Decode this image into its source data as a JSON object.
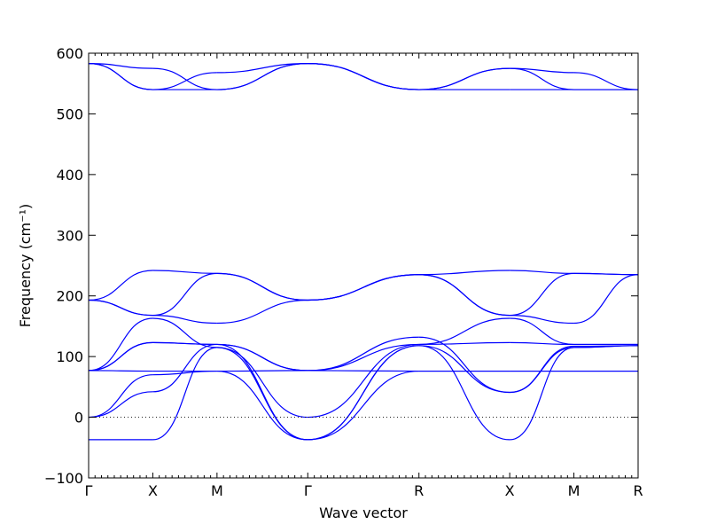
{
  "chart_data": {
    "type": "line",
    "title": "",
    "xlabel": "Wave vector",
    "ylabel": "Frequency (cm⁻¹)",
    "ylim": [
      -100,
      600
    ],
    "yticks": [
      -100,
      0,
      100,
      200,
      300,
      400,
      500,
      600
    ],
    "x_path_labels": [
      "Γ",
      "X",
      "M",
      "Γ",
      "R",
      "X",
      "M",
      "R"
    ],
    "x_path_positions": [
      0,
      0.5,
      1.0,
      1.707,
      2.573,
      3.28,
      3.78,
      4.28
    ],
    "grid": false,
    "line_color": "#0000ff",
    "zero_reference_line": true,
    "series": [
      {
        "segments": [
          {
            "x": [
              0,
              0.5
            ],
            "y": [
              583,
              575
            ]
          },
          {
            "x": [
              0.5,
              1.0
            ],
            "y": [
              575,
              540
            ]
          },
          {
            "x": [
              1.0,
              1.707
            ],
            "y": [
              540,
              583
            ]
          },
          {
            "x": [
              1.707,
              2.573
            ],
            "y": [
              583,
              540
            ]
          },
          {
            "x": [
              2.573,
              3.28
            ],
            "y": [
              540,
              575
            ]
          },
          {
            "x": [
              3.28,
              3.78
            ],
            "y": [
              575,
              540
            ]
          },
          {
            "x": [
              3.78,
              4.28
            ],
            "y": [
              540,
              540
            ]
          }
        ]
      },
      {
        "segments": [
          {
            "x": [
              0,
              0.5
            ],
            "y": [
              583,
              540
            ]
          },
          {
            "x": [
              0.5,
              1.0
            ],
            "y": [
              540,
              568
            ]
          },
          {
            "x": [
              1.0,
              1.707
            ],
            "y": [
              568,
              583
            ]
          },
          {
            "x": [
              1.707,
              2.573
            ],
            "y": [
              583,
              540
            ]
          },
          {
            "x": [
              2.573,
              3.28
            ],
            "y": [
              540,
              575
            ]
          },
          {
            "x": [
              3.28,
              3.78
            ],
            "y": [
              575,
              568
            ]
          },
          {
            "x": [
              3.78,
              4.28
            ],
            "y": [
              568,
              540
            ]
          }
        ]
      },
      {
        "segments": [
          {
            "x": [
              0,
              0.5
            ],
            "y": [
              583,
              540
            ]
          },
          {
            "x": [
              0.5,
              1.0
            ],
            "y": [
              540,
              540
            ]
          },
          {
            "x": [
              1.0,
              1.707
            ],
            "y": [
              540,
              583
            ]
          },
          {
            "x": [
              1.707,
              2.573
            ],
            "y": [
              583,
              540
            ]
          },
          {
            "x": [
              2.573,
              3.28
            ],
            "y": [
              540,
              540
            ]
          },
          {
            "x": [
              3.28,
              3.78
            ],
            "y": [
              540,
              540
            ]
          },
          {
            "x": [
              3.78,
              4.28
            ],
            "y": [
              540,
              540
            ]
          }
        ]
      },
      {
        "segments": [
          {
            "x": [
              0,
              0.5
            ],
            "y": [
              193,
              242
            ]
          },
          {
            "x": [
              0.5,
              1.0
            ],
            "y": [
              242,
              237
            ]
          },
          {
            "x": [
              1.0,
              1.707
            ],
            "y": [
              237,
              193
            ]
          },
          {
            "x": [
              1.707,
              2.573
            ],
            "y": [
              193,
              235
            ]
          },
          {
            "x": [
              2.573,
              3.28
            ],
            "y": [
              235,
              242
            ]
          },
          {
            "x": [
              3.28,
              3.78
            ],
            "y": [
              242,
              237
            ]
          },
          {
            "x": [
              3.78,
              4.28
            ],
            "y": [
              237,
              235
            ]
          }
        ]
      },
      {
        "segments": [
          {
            "x": [
              0,
              0.5
            ],
            "y": [
              193,
              168
            ]
          },
          {
            "x": [
              0.5,
              1.0
            ],
            "y": [
              168,
              237
            ]
          },
          {
            "x": [
              1.0,
              1.707
            ],
            "y": [
              237,
              193
            ]
          },
          {
            "x": [
              1.707,
              2.573
            ],
            "y": [
              193,
              235
            ]
          },
          {
            "x": [
              2.573,
              3.28
            ],
            "y": [
              235,
              168
            ]
          },
          {
            "x": [
              3.28,
              3.78
            ],
            "y": [
              168,
              237
            ]
          },
          {
            "x": [
              3.78,
              4.28
            ],
            "y": [
              237,
              235
            ]
          }
        ]
      },
      {
        "segments": [
          {
            "x": [
              0,
              0.5
            ],
            "y": [
              193,
              168
            ]
          },
          {
            "x": [
              0.5,
              1.0
            ],
            "y": [
              168,
              155
            ]
          },
          {
            "x": [
              1.0,
              1.707
            ],
            "y": [
              155,
              193
            ]
          },
          {
            "x": [
              1.707,
              2.573
            ],
            "y": [
              193,
              235
            ]
          },
          {
            "x": [
              2.573,
              3.28
            ],
            "y": [
              235,
              168
            ]
          },
          {
            "x": [
              3.28,
              3.78
            ],
            "y": [
              168,
              155
            ]
          },
          {
            "x": [
              3.78,
              4.28
            ],
            "y": [
              155,
              235
            ]
          }
        ]
      },
      {
        "segments": [
          {
            "x": [
              0,
              0.5
            ],
            "y": [
              77,
              163
            ]
          },
          {
            "x": [
              0.5,
              1.0
            ],
            "y": [
              163,
              115
            ]
          },
          {
            "x": [
              1.0,
              1.707
            ],
            "y": [
              115,
              0
            ]
          },
          {
            "x": [
              1.707,
              2.573
            ],
            "y": [
              0,
              120
            ]
          },
          {
            "x": [
              2.573,
              3.28
            ],
            "y": [
              120,
              163
            ]
          },
          {
            "x": [
              3.28,
              3.78
            ],
            "y": [
              163,
              120
            ]
          },
          {
            "x": [
              3.78,
              4.28
            ],
            "y": [
              120,
              120
            ]
          }
        ]
      },
      {
        "segments": [
          {
            "x": [
              0,
              0.5
            ],
            "y": [
              77,
              123
            ]
          },
          {
            "x": [
              0.5,
              1.0
            ],
            "y": [
              123,
              120
            ]
          },
          {
            "x": [
              1.0,
              1.707
            ],
            "y": [
              120,
              77
            ]
          },
          {
            "x": [
              1.707,
              2.573
            ],
            "y": [
              77,
              120
            ]
          },
          {
            "x": [
              2.573,
              3.28
            ],
            "y": [
              120,
              123
            ]
          },
          {
            "x": [
              3.28,
              3.78
            ],
            "y": [
              123,
              120
            ]
          },
          {
            "x": [
              3.78,
              4.28
            ],
            "y": [
              120,
              120
            ]
          }
        ]
      },
      {
        "segments": [
          {
            "x": [
              0,
              0.5
            ],
            "y": [
              77,
              123
            ]
          },
          {
            "x": [
              0.5,
              1.0
            ],
            "y": [
              123,
              120
            ]
          },
          {
            "x": [
              1.0,
              1.707
            ],
            "y": [
              120,
              77
            ]
          },
          {
            "x": [
              1.707,
              2.573
            ],
            "y": [
              77,
              132
            ]
          },
          {
            "x": [
              2.573,
              3.28
            ],
            "y": [
              132,
              41
            ]
          },
          {
            "x": [
              3.28,
              3.78
            ],
            "y": [
              41,
              117
            ]
          },
          {
            "x": [
              3.78,
              4.28
            ],
            "y": [
              117,
              118
            ]
          }
        ]
      },
      {
        "segments": [
          {
            "x": [
              0,
              0.5
            ],
            "y": [
              77,
              76
            ]
          },
          {
            "x": [
              0.5,
              1.0
            ],
            "y": [
              76,
              76
            ]
          },
          {
            "x": [
              1.0,
              1.707
            ],
            "y": [
              76,
              77
            ]
          },
          {
            "x": [
              1.707,
              2.573
            ],
            "y": [
              77,
              76
            ]
          },
          {
            "x": [
              2.573,
              3.28
            ],
            "y": [
              76,
              76
            ]
          },
          {
            "x": [
              3.28,
              3.78
            ],
            "y": [
              76,
              76
            ]
          },
          {
            "x": [
              3.78,
              4.28
            ],
            "y": [
              76,
              76
            ]
          }
        ]
      },
      {
        "segments": [
          {
            "x": [
              0,
              0.5
            ],
            "y": [
              0,
              70
            ]
          },
          {
            "x": [
              0.5,
              1.0
            ],
            "y": [
              70,
              76
            ]
          },
          {
            "x": [
              1.0,
              1.707
            ],
            "y": [
              76,
              -37
            ]
          },
          {
            "x": [
              1.707,
              2.573
            ],
            "y": [
              -37,
              76
            ]
          },
          {
            "x": [
              2.573,
              3.28
            ],
            "y": [
              76,
              76
            ]
          },
          {
            "x": [
              3.28,
              3.78
            ],
            "y": [
              76,
              76
            ]
          },
          {
            "x": [
              3.78,
              4.28
            ],
            "y": [
              76,
              76
            ]
          }
        ]
      },
      {
        "segments": [
          {
            "x": [
              0,
              0.5
            ],
            "y": [
              0,
              42
            ]
          },
          {
            "x": [
              0.5,
              1.0
            ],
            "y": [
              42,
              120
            ]
          },
          {
            "x": [
              1.0,
              1.707
            ],
            "y": [
              120,
              -37
            ]
          },
          {
            "x": [
              1.707,
              2.573
            ],
            "y": [
              -37,
              118
            ]
          },
          {
            "x": [
              2.573,
              3.28
            ],
            "y": [
              118,
              41
            ]
          },
          {
            "x": [
              3.28,
              3.78
            ],
            "y": [
              41,
              115
            ]
          },
          {
            "x": [
              3.78,
              4.28
            ],
            "y": [
              115,
              118
            ]
          }
        ]
      },
      {
        "segments": [
          {
            "x": [
              0,
              0.5
            ],
            "y": [
              -37,
              -37
            ]
          },
          {
            "x": [
              0.5,
              1.0
            ],
            "y": [
              -37,
              115
            ]
          },
          {
            "x": [
              1.0,
              1.707
            ],
            "y": [
              115,
              -37
            ]
          },
          {
            "x": [
              1.707,
              2.573
            ],
            "y": [
              -37,
              118
            ]
          },
          {
            "x": [
              2.573,
              3.28
            ],
            "y": [
              118,
              -37
            ]
          },
          {
            "x": [
              3.28,
              3.78
            ],
            "y": [
              -37,
              115
            ]
          },
          {
            "x": [
              3.78,
              4.28
            ],
            "y": [
              115,
              118
            ]
          }
        ]
      }
    ]
  }
}
